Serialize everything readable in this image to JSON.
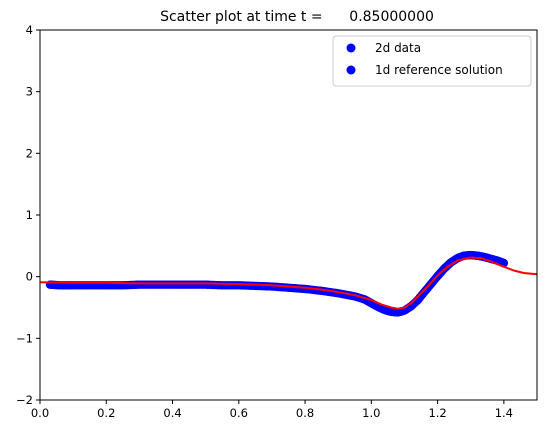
{
  "chart_data": {
    "type": "scatter",
    "title": "Scatter plot at time t =      0.85000000",
    "xlabel": "",
    "ylabel": "",
    "xlim": [
      0,
      1.5
    ],
    "ylim": [
      -2,
      4
    ],
    "x_ticks": [
      0.0,
      0.2,
      0.4,
      0.6,
      0.8,
      1.0,
      1.2,
      1.4
    ],
    "x_tick_labels": [
      "0.0",
      "0.2",
      "0.4",
      "0.6",
      "0.8",
      "1.0",
      "1.2",
      "1.4"
    ],
    "y_ticks": [
      -2,
      -1,
      0,
      1,
      2,
      3,
      4
    ],
    "y_tick_labels": [
      "−2",
      "−1",
      "0",
      "1",
      "2",
      "3",
      "4"
    ],
    "legend_position": "top-right",
    "series": [
      {
        "name": "2d data",
        "kind": "scatter",
        "color": "#0000ff",
        "x": [
          0.03,
          0.06,
          0.1,
          0.15,
          0.2,
          0.25,
          0.3,
          0.35,
          0.4,
          0.45,
          0.5,
          0.55,
          0.6,
          0.65,
          0.7,
          0.75,
          0.8,
          0.85,
          0.9,
          0.95,
          0.98,
          1.0,
          1.02,
          1.04,
          1.06,
          1.08,
          1.1,
          1.12,
          1.14,
          1.16,
          1.18,
          1.2,
          1.22,
          1.24,
          1.26,
          1.28,
          1.3,
          1.32,
          1.34,
          1.36,
          1.38,
          1.4
        ],
        "y": [
          -0.13,
          -0.14,
          -0.14,
          -0.14,
          -0.14,
          -0.14,
          -0.13,
          -0.13,
          -0.13,
          -0.13,
          -0.13,
          -0.14,
          -0.14,
          -0.15,
          -0.16,
          -0.18,
          -0.2,
          -0.23,
          -0.27,
          -0.32,
          -0.37,
          -0.43,
          -0.49,
          -0.54,
          -0.57,
          -0.58,
          -0.55,
          -0.48,
          -0.38,
          -0.25,
          -0.12,
          0.01,
          0.13,
          0.23,
          0.3,
          0.34,
          0.35,
          0.34,
          0.32,
          0.29,
          0.26,
          0.22
        ]
      },
      {
        "name": "1d reference solution",
        "kind": "line",
        "color": "#ff0000",
        "x": [
          0.0,
          0.1,
          0.2,
          0.3,
          0.4,
          0.5,
          0.6,
          0.7,
          0.8,
          0.85,
          0.9,
          0.95,
          1.0,
          1.03,
          1.06,
          1.08,
          1.1,
          1.12,
          1.15,
          1.18,
          1.2,
          1.23,
          1.26,
          1.3,
          1.33,
          1.36,
          1.4,
          1.43,
          1.46,
          1.5
        ],
        "y": [
          -0.09,
          -0.1,
          -0.1,
          -0.11,
          -0.11,
          -0.11,
          -0.12,
          -0.14,
          -0.18,
          -0.21,
          -0.25,
          -0.3,
          -0.38,
          -0.45,
          -0.5,
          -0.52,
          -0.5,
          -0.43,
          -0.27,
          -0.1,
          0.02,
          0.16,
          0.26,
          0.31,
          0.3,
          0.25,
          0.16,
          0.1,
          0.06,
          0.04
        ]
      }
    ],
    "legend_marker_color": "#0000ff"
  }
}
